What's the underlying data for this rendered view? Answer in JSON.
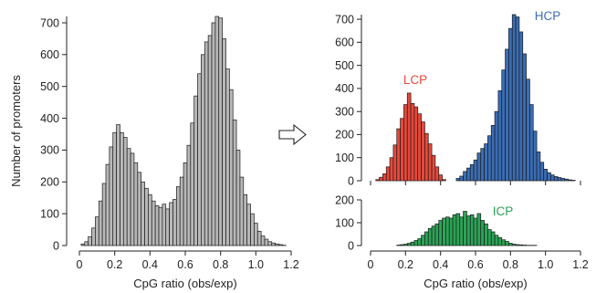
{
  "arrow_icon": "right-arrow-icon",
  "chart_data": [
    {
      "type": "bar",
      "xlabel": "CpG ratio (obs/exp)",
      "ylabel": "Number of promoters",
      "xlim": [
        0,
        1.2
      ],
      "ylim": [
        0,
        720
      ],
      "xticks": [
        "0",
        "0.2",
        "0.4",
        "0.6",
        "0.8",
        "1.0",
        "1.2"
      ],
      "yticks": [
        "0",
        "100",
        "200",
        "300",
        "400",
        "500",
        "600",
        "700"
      ],
      "bin_width": 0.02,
      "series": [
        {
          "color": "#b8b8b8",
          "x": [
            0.02,
            0.04,
            0.06,
            0.08,
            0.1,
            0.12,
            0.14,
            0.16,
            0.18,
            0.2,
            0.22,
            0.24,
            0.26,
            0.28,
            0.3,
            0.32,
            0.34,
            0.36,
            0.38,
            0.4,
            0.42,
            0.44,
            0.46,
            0.48,
            0.5,
            0.52,
            0.54,
            0.56,
            0.58,
            0.6,
            0.62,
            0.64,
            0.66,
            0.68,
            0.7,
            0.72,
            0.74,
            0.76,
            0.78,
            0.8,
            0.82,
            0.84,
            0.86,
            0.88,
            0.9,
            0.92,
            0.94,
            0.96,
            0.98,
            1.0,
            1.02,
            1.04,
            1.06,
            1.08,
            1.1,
            1.12,
            1.14,
            1.16
          ],
          "values": [
            5,
            12,
            28,
            55,
            90,
            140,
            195,
            255,
            310,
            355,
            380,
            355,
            340,
            305,
            290,
            260,
            230,
            200,
            180,
            160,
            140,
            125,
            120,
            130,
            115,
            135,
            145,
            185,
            215,
            260,
            315,
            385,
            470,
            540,
            600,
            640,
            660,
            700,
            720,
            715,
            650,
            555,
            490,
            395,
            300,
            215,
            160,
            130,
            100,
            70,
            45,
            30,
            20,
            12,
            8,
            5,
            3,
            1
          ]
        }
      ]
    },
    {
      "type": "bar",
      "xlabel": "CpG ratio (obs/exp)",
      "ylabel": "",
      "xlim": [
        0,
        1.2
      ],
      "ylim": [
        0,
        720
      ],
      "xticks": [
        "0",
        "0.2",
        "0.4",
        "0.6",
        "0.8",
        "1.0",
        "1.2"
      ],
      "yticks": [
        "0",
        "100",
        "200",
        "300",
        "400",
        "500",
        "600",
        "700"
      ],
      "bin_width": 0.02,
      "series": [
        {
          "name": "LCP",
          "color": "#e8483a",
          "x": [
            0.04,
            0.06,
            0.08,
            0.1,
            0.12,
            0.14,
            0.16,
            0.18,
            0.2,
            0.22,
            0.24,
            0.26,
            0.28,
            0.3,
            0.32,
            0.34,
            0.36,
            0.38,
            0.4,
            0.42
          ],
          "values": [
            5,
            15,
            30,
            60,
            100,
            155,
            225,
            270,
            330,
            380,
            335,
            320,
            290,
            255,
            205,
            160,
            110,
            60,
            25,
            5
          ]
        },
        {
          "name": "HCP",
          "color": "#3a6db5",
          "x": [
            0.5,
            0.52,
            0.54,
            0.56,
            0.58,
            0.6,
            0.62,
            0.64,
            0.66,
            0.68,
            0.7,
            0.72,
            0.74,
            0.76,
            0.78,
            0.8,
            0.82,
            0.84,
            0.86,
            0.88,
            0.9,
            0.92,
            0.94,
            0.96,
            0.98,
            1.0,
            1.02,
            1.04,
            1.06,
            1.08,
            1.1,
            1.12,
            1.14,
            1.16
          ],
          "values": [
            10,
            20,
            40,
            55,
            70,
            90,
            120,
            140,
            160,
            195,
            240,
            300,
            390,
            480,
            570,
            660,
            720,
            710,
            645,
            550,
            440,
            330,
            215,
            125,
            80,
            50,
            35,
            25,
            18,
            14,
            10,
            7,
            4,
            2
          ]
        }
      ]
    },
    {
      "type": "bar",
      "xlabel": "CpG ratio (obs/exp)",
      "ylabel": "",
      "xlim": [
        0,
        1.2
      ],
      "ylim": [
        0,
        200
      ],
      "xticks": [
        "0",
        "0.2",
        "0.4",
        "0.6",
        "0.8",
        "1.0",
        "1.2"
      ],
      "yticks": [
        "0",
        "100",
        "200"
      ],
      "bin_width": 0.02,
      "series": [
        {
          "name": "ICP",
          "color": "#2aa456",
          "x": [
            0.16,
            0.18,
            0.2,
            0.22,
            0.24,
            0.26,
            0.28,
            0.3,
            0.32,
            0.34,
            0.36,
            0.38,
            0.4,
            0.42,
            0.44,
            0.46,
            0.48,
            0.5,
            0.52,
            0.54,
            0.56,
            0.58,
            0.6,
            0.62,
            0.64,
            0.66,
            0.68,
            0.7,
            0.72,
            0.74,
            0.76,
            0.78,
            0.8,
            0.82,
            0.84,
            0.86,
            0.88,
            0.9,
            0.92,
            0.94
          ],
          "values": [
            2,
            4,
            6,
            10,
            15,
            22,
            30,
            45,
            60,
            75,
            85,
            95,
            110,
            120,
            125,
            120,
            135,
            140,
            125,
            150,
            130,
            135,
            120,
            140,
            110,
            95,
            70,
            60,
            45,
            35,
            25,
            18,
            10,
            6,
            4,
            3,
            2,
            1,
            1,
            1
          ]
        }
      ]
    }
  ]
}
